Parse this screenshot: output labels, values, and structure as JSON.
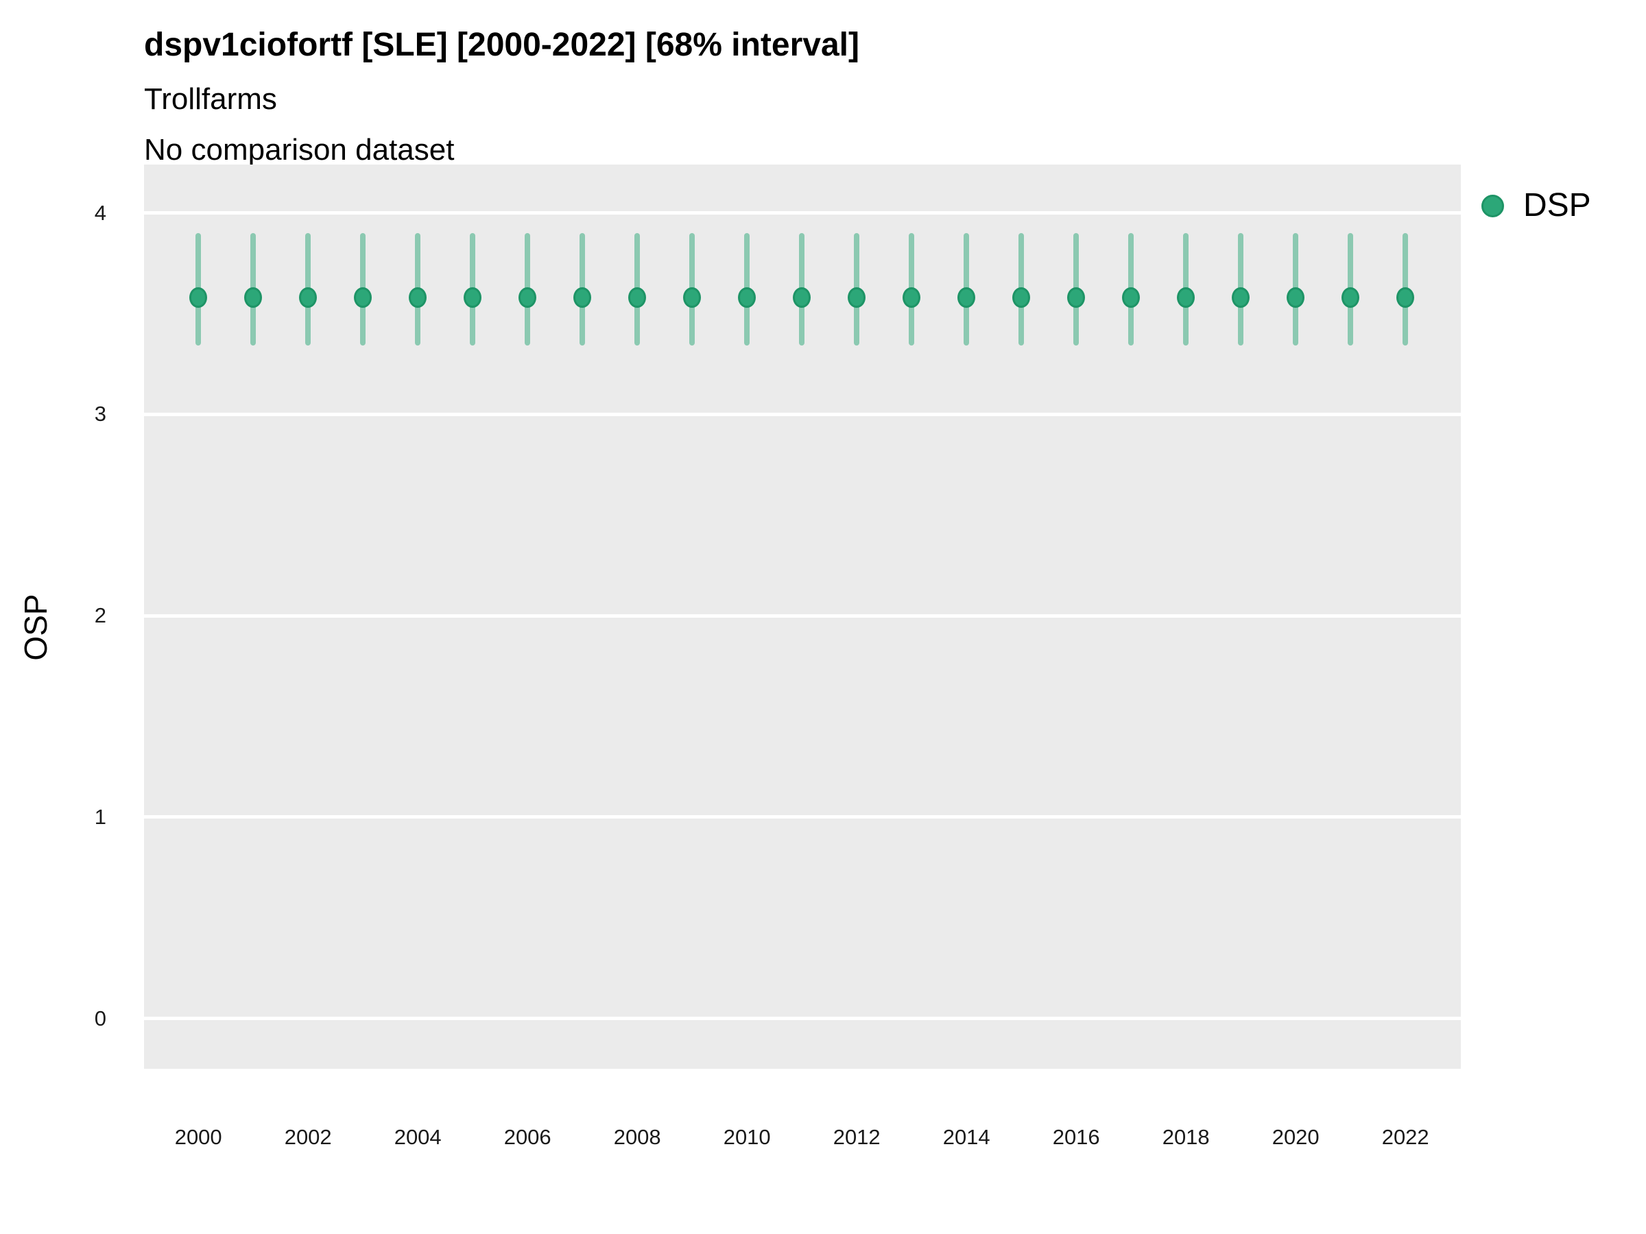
{
  "header": {
    "title": "dspv1ciofortf [SLE] [2000-2022] [68% interval]",
    "subtitle": "Trollfarms",
    "comparison_note": "No comparison dataset"
  },
  "legend": {
    "position": "right",
    "items": [
      {
        "label": "DSP",
        "color": "#2CA778",
        "stroke": "#1E9466"
      }
    ]
  },
  "chart_data": {
    "type": "scatter",
    "subtype": "pointrange",
    "title": "dspv1ciofortf [SLE] [2000-2022] [68% interval]",
    "subtitle": "Trollfarms",
    "note": "No comparison dataset",
    "interval": "68%",
    "xlabel": "",
    "ylabel": "OSP",
    "panel_bg": "#EBEBEB",
    "grid_color": "#FFFFFF",
    "grid": "major-horizontal-only",
    "legend_position": "right",
    "xlim": [
      1999.01,
      2023.01
    ],
    "ylim": [
      -0.25,
      4.24
    ],
    "x_ticks": [
      2000,
      2002,
      2004,
      2006,
      2008,
      2010,
      2012,
      2014,
      2016,
      2018,
      2020,
      2022
    ],
    "y_ticks": [
      0,
      1,
      2,
      3,
      4
    ],
    "x": [
      2000,
      2001,
      2002,
      2003,
      2004,
      2005,
      2006,
      2007,
      2008,
      2009,
      2010,
      2011,
      2012,
      2013,
      2014,
      2015,
      2016,
      2017,
      2018,
      2019,
      2020,
      2021,
      2022
    ],
    "series": [
      {
        "name": "DSP",
        "color": "#2CA778",
        "stroke": "#1E9466",
        "interval_color": "rgba(44,167,120,0.5)",
        "mean": [
          3.58,
          3.58,
          3.58,
          3.58,
          3.58,
          3.58,
          3.58,
          3.58,
          3.58,
          3.58,
          3.58,
          3.58,
          3.58,
          3.58,
          3.58,
          3.58,
          3.58,
          3.58,
          3.58,
          3.58,
          3.58,
          3.58,
          3.58
        ],
        "lower_68": [
          3.34,
          3.34,
          3.34,
          3.34,
          3.34,
          3.34,
          3.34,
          3.34,
          3.34,
          3.34,
          3.34,
          3.34,
          3.34,
          3.34,
          3.34,
          3.34,
          3.34,
          3.34,
          3.34,
          3.34,
          3.34,
          3.34,
          3.34
        ],
        "upper_68": [
          3.9,
          3.9,
          3.9,
          3.9,
          3.9,
          3.9,
          3.9,
          3.9,
          3.9,
          3.9,
          3.9,
          3.9,
          3.9,
          3.9,
          3.9,
          3.9,
          3.9,
          3.9,
          3.9,
          3.9,
          3.9,
          3.9,
          3.9
        ]
      }
    ]
  }
}
